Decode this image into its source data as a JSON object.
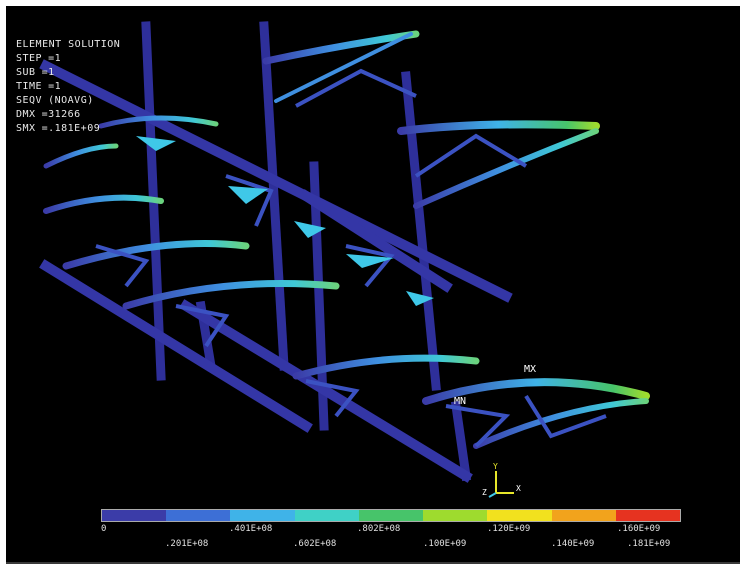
{
  "info": {
    "title": "ELEMENT SOLUTION",
    "rows": [
      {
        "key": "STEP",
        "value": "=1"
      },
      {
        "key": "SUB",
        "value": "=1"
      },
      {
        "key": "TIME",
        "value": "=1"
      },
      {
        "key": "SEQV",
        "value": "(NOAVG)"
      },
      {
        "key": "DMX",
        "value": "=31266"
      },
      {
        "key": "SMX",
        "value": "=.181E+09"
      }
    ]
  },
  "markers": {
    "max": "MX",
    "min": "MN"
  },
  "triad": {
    "y": "Y",
    "z": "Z",
    "x": "X"
  },
  "legend": {
    "colors": [
      "#3b3ca8",
      "#3d6fd6",
      "#3fb3e8",
      "#3fd1c6",
      "#47c46a",
      "#9edb2e",
      "#f2e11e",
      "#f2a31c",
      "#e63320"
    ],
    "top_labels": [
      "0",
      ".401E+08",
      ".802E+08",
      ".120E+09",
      ".160E+09"
    ],
    "bottom_labels": [
      ".201E+08",
      ".602E+08",
      ".100E+09",
      ".140E+09",
      ".181E+09"
    ]
  }
}
